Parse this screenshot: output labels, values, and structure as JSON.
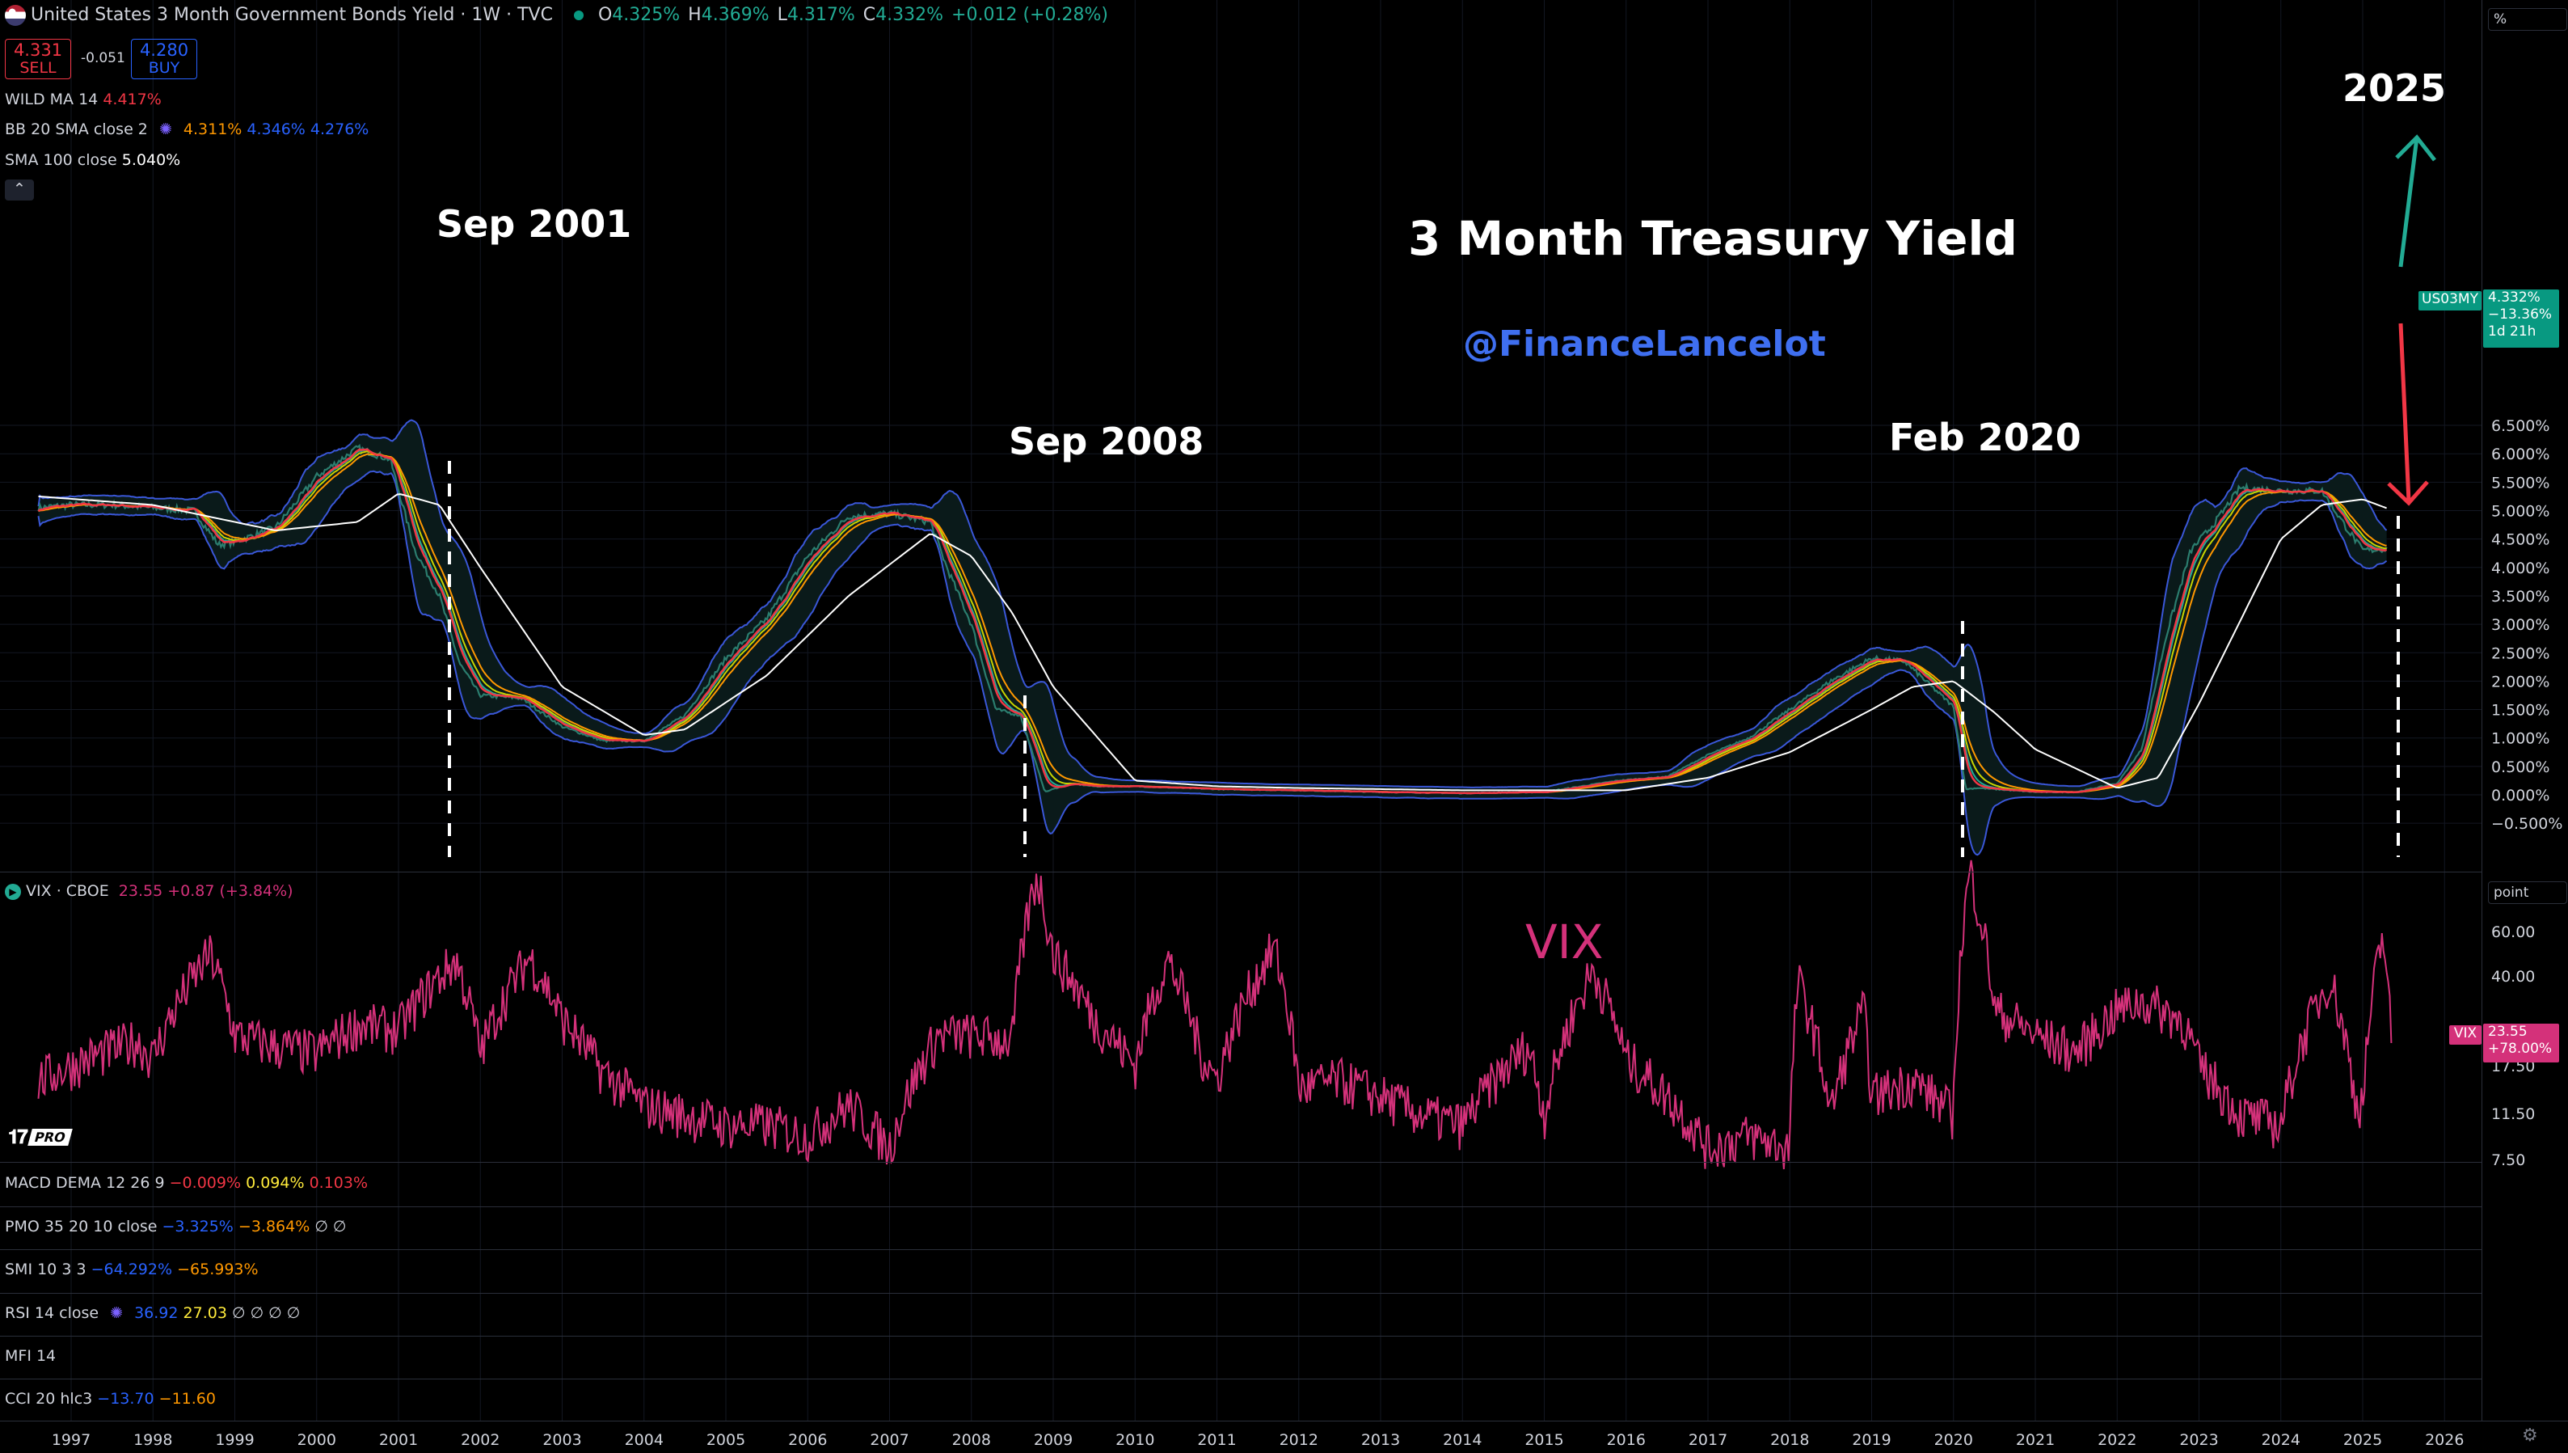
{
  "header": {
    "title": "United States 3 Month Government Bonds Yield · 1W · TVC",
    "o_lbl": "O",
    "o_val": "4.325%",
    "h_lbl": "H",
    "h_val": "4.369%",
    "l_lbl": "L",
    "l_val": "4.317%",
    "c_lbl": "C",
    "c_val": "4.332%",
    "change": "+0.012 (+0.28%)"
  },
  "trade": {
    "sell_value": "4.331",
    "sell_label": "SELL",
    "spread": "-0.051",
    "buy_value": "4.280",
    "buy_label": "BUY"
  },
  "indicators_main": {
    "wild_label": "WILD MA 14",
    "wild_value": "4.417%",
    "bb_label": "BB 20 SMA close 2",
    "bb_v1": "4.311%",
    "bb_v2": "4.346%",
    "bb_v3": "4.276%",
    "sma_label": "SMA 100 close",
    "sma_value": "5.040%"
  },
  "vix_header": {
    "label": "VIX · CBOE",
    "value": "23.55",
    "change": "+0.87 (+3.84%)"
  },
  "lower_indicators": {
    "macd_label": "MACD DEMA 12 26 9",
    "macd_v1": "−0.009%",
    "macd_v2": "0.094%",
    "macd_v3": "0.103%",
    "pmo_label": "PMO 35 20 10 close",
    "pmo_v1": "−3.325%",
    "pmo_v2": "−3.864%",
    "pmo_v3": "∅ ∅",
    "smi_label": "SMI 10 3 3",
    "smi_v1": "−64.292%",
    "smi_v2": "−65.993%",
    "rsi_label": "RSI 14 close",
    "rsi_v1": "36.92",
    "rsi_v2": "27.03",
    "rsi_v3": "∅ ∅ ∅ ∅",
    "mfi_label": "MFI 14",
    "cci_label": "CCI 20 hlc3",
    "cci_v1": "−13.70",
    "cci_v2": "−11.60"
  },
  "annotations": {
    "title": "3 Month Treasury Yield",
    "handle": "@FinanceLancelot",
    "sep2001": "Sep 2001",
    "sep2008": "Sep 2008",
    "feb2020": "Feb 2020",
    "y2025": "2025",
    "vix": "VIX",
    "logo": "PRO"
  },
  "price_scale": {
    "unit": "%",
    "ticks": [
      "6.500%",
      "6.000%",
      "5.500%",
      "5.000%",
      "4.500%",
      "4.000%",
      "3.500%",
      "3.000%",
      "2.500%",
      "2.000%",
      "1.500%",
      "1.000%",
      "0.500%",
      "0.000%",
      "−0.500%"
    ],
    "tag_symbol": "US03MY",
    "tag_value": "4.332%",
    "tag_change": "−13.36%",
    "tag_time": "1d 21h"
  },
  "vix_scale": {
    "unit": "point",
    "ticks": [
      "60.00",
      "40.00",
      "23.55",
      "17.50",
      "11.50",
      "7.50"
    ],
    "tag_symbol": "VIX",
    "tag_value": "23.55",
    "tag_change": "+78.00%"
  },
  "colors": {
    "background": "#000000",
    "price": "#3b5bdb",
    "bb": "#3a57d8",
    "wild": "#f23645",
    "sma100": "#ffffff",
    "vix": "#d4317a",
    "up": "#22ab94",
    "down": "#f23645",
    "annotation": "#ffffff",
    "handle": "#3f6ff0"
  },
  "chart_data": [
    {
      "type": "line",
      "title": "United States 3 Month Government Bonds Yield",
      "xlabel": "",
      "ylabel": "%",
      "ylim": [
        -0.5,
        6.5
      ],
      "x_ticks": [
        "1997",
        "1998",
        "1999",
        "2000",
        "2001",
        "2002",
        "2003",
        "2004",
        "2005",
        "2006",
        "2007",
        "2008",
        "2009",
        "2010",
        "2011",
        "2012",
        "2013",
        "2014",
        "2015",
        "2016",
        "2017",
        "2018",
        "2019",
        "2020",
        "2021",
        "2022",
        "2023",
        "2024",
        "2025",
        "2026"
      ],
      "series": [
        {
          "name": "US03MY",
          "x": [
            1996.6,
            1997.0,
            1997.5,
            1998.0,
            1998.5,
            1998.8,
            1999.0,
            1999.5,
            2000.0,
            2000.5,
            2000.9,
            2001.2,
            2001.5,
            2001.75,
            2002.0,
            2002.5,
            2003.0,
            2003.5,
            2004.0,
            2004.5,
            2005.0,
            2005.5,
            2006.0,
            2006.5,
            2007.0,
            2007.5,
            2007.7,
            2008.0,
            2008.3,
            2008.6,
            2008.9,
            2009.2,
            2009.5,
            2010.0,
            2011.0,
            2012.0,
            2013.0,
            2014.0,
            2015.0,
            2015.9,
            2016.5,
            2017.0,
            2017.5,
            2018.0,
            2018.5,
            2019.0,
            2019.4,
            2019.7,
            2020.0,
            2020.15,
            2020.3,
            2020.5,
            2021.0,
            2021.5,
            2022.0,
            2022.3,
            2022.6,
            2022.9,
            2023.2,
            2023.5,
            2024.0,
            2024.5,
            2024.8,
            2025.0,
            2025.3
          ],
          "values": [
            5.05,
            5.1,
            5.1,
            5.05,
            5.0,
            4.4,
            4.45,
            4.7,
            5.6,
            6.1,
            5.9,
            4.3,
            3.5,
            2.3,
            1.75,
            1.7,
            1.2,
            0.95,
            0.95,
            1.4,
            2.4,
            3.1,
            4.2,
            4.9,
            4.95,
            4.8,
            4.0,
            3.0,
            1.5,
            1.4,
            0.05,
            0.2,
            0.15,
            0.15,
            0.1,
            0.08,
            0.05,
            0.03,
            0.05,
            0.25,
            0.32,
            0.7,
            1.0,
            1.5,
            2.0,
            2.4,
            2.35,
            1.95,
            1.55,
            0.1,
            0.12,
            0.1,
            0.05,
            0.05,
            0.2,
            0.8,
            2.8,
            4.3,
            4.8,
            5.4,
            5.35,
            5.35,
            4.7,
            4.3,
            4.33
          ]
        },
        {
          "name": "SMA 100",
          "x": [
            1996.6,
            1998.0,
            1999.5,
            2000.5,
            2001.0,
            2001.5,
            2002.0,
            2003.0,
            2004.0,
            2004.5,
            2005.5,
            2006.5,
            2007.5,
            2008.0,
            2008.5,
            2009.0,
            2010.0,
            2011.0,
            2012.0,
            2014.0,
            2016.0,
            2017.0,
            2018.0,
            2019.0,
            2019.5,
            2020.0,
            2020.5,
            2021.0,
            2022.0,
            2022.5,
            2023.0,
            2024.0,
            2024.5,
            2025.0,
            2025.3
          ],
          "values": [
            5.25,
            5.1,
            4.65,
            4.8,
            5.3,
            5.1,
            4.0,
            1.9,
            1.05,
            1.15,
            2.1,
            3.5,
            4.6,
            4.2,
            3.2,
            1.9,
            0.25,
            0.15,
            0.12,
            0.08,
            0.08,
            0.3,
            0.75,
            1.5,
            1.9,
            2.0,
            1.45,
            0.8,
            0.12,
            0.3,
            1.6,
            4.5,
            5.1,
            5.2,
            5.04
          ]
        }
      ]
    },
    {
      "type": "line",
      "title": "VIX · CBOE",
      "xlabel": "",
      "ylabel": "point",
      "series": [
        {
          "name": "VIX",
          "x": [
            1996.6,
            1997.0,
            1997.8,
            1998.0,
            1998.7,
            1999.0,
            1999.5,
            2000.0,
            2000.5,
            2001.0,
            2001.7,
            2002.0,
            2002.6,
            2003.0,
            2003.5,
            2004.0,
            2004.5,
            2005.0,
            2005.5,
            2006.0,
            2006.5,
            2007.0,
            2007.6,
            2008.0,
            2008.5,
            2008.8,
            2009.0,
            2009.5,
            2010.0,
            2010.4,
            2010.8,
            2011.0,
            2011.7,
            2012.0,
            2012.5,
            2013.0,
            2013.5,
            2014.0,
            2014.8,
            2015.0,
            2015.6,
            2016.0,
            2016.5,
            2017.0,
            2017.5,
            2018.0,
            2018.1,
            2018.5,
            2018.9,
            2019.0,
            2019.5,
            2020.0,
            2020.2,
            2020.5,
            2021.0,
            2021.5,
            2022.0,
            2022.3,
            2022.8,
            2023.0,
            2023.5,
            2024.0,
            2024.6,
            2024.9,
            2025.0,
            2025.25,
            2025.35
          ],
          "values": [
            18,
            20,
            24,
            21,
            45,
            25,
            23,
            22,
            27,
            26,
            43,
            22,
            44,
            28,
            19,
            15,
            14,
            13,
            13,
            12,
            15,
            11,
            25,
            25,
            24,
            80,
            45,
            28,
            20,
            43,
            22,
            18,
            47,
            17,
            18,
            16,
            14,
            13,
            23,
            14,
            40,
            21,
            16,
            11,
            12,
            11,
            37,
            14,
            30,
            16,
            18,
            14,
            82,
            30,
            25,
            22,
            30,
            32,
            28,
            20,
            14,
            13,
            38,
            16,
            15,
            52,
            23.55
          ]
        }
      ]
    }
  ]
}
